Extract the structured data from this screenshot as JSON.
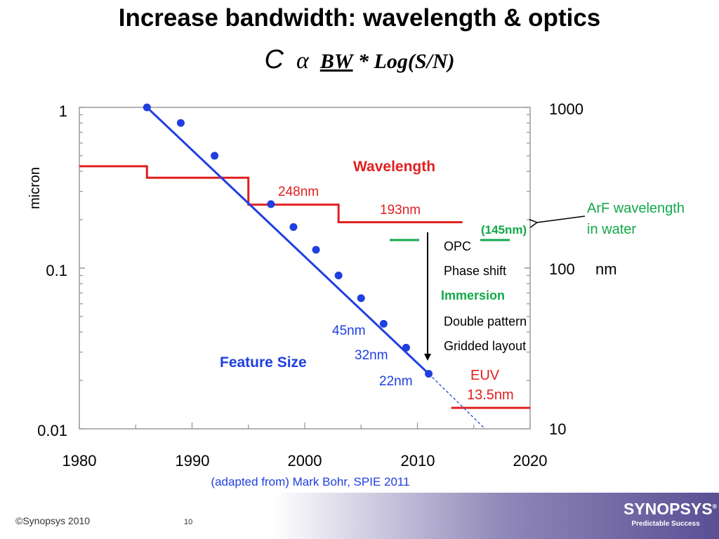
{
  "slide": {
    "title": "Increase bandwidth: wavelength & optics",
    "formula": {
      "c": "C",
      "alpha": "α",
      "bw": "BW",
      "rest": "* Log(S/N)"
    },
    "source_note": "(adapted from) Mark Bohr, SPIE 2011",
    "copyright": "©Synopsys 2010",
    "page_number": "10",
    "logo": {
      "brand": "SYNOPSYS",
      "reg": "®",
      "tagline": "Predictable Success"
    }
  },
  "chart_data": {
    "type": "line",
    "x_range": [
      1980,
      2020
    ],
    "x_ticks": [
      1980,
      1990,
      2000,
      2010,
      2020
    ],
    "x_tick_labels": [
      "1980",
      "1990",
      "2000",
      "2010",
      "2020"
    ],
    "y_left": {
      "label": "micron",
      "scale": "log",
      "range": [
        0.01,
        1
      ],
      "ticks": [
        1,
        0.1,
        0.01
      ],
      "tick_labels": [
        "1",
        "0.1",
        "0.01"
      ]
    },
    "y_right": {
      "scale": "log",
      "range": [
        10,
        1000
      ],
      "ticks": [
        1000,
        100,
        10
      ],
      "tick_labels": [
        "1000",
        "100",
        "10"
      ],
      "unit": "nm"
    },
    "colors": {
      "feature": "#1f3fe0",
      "wavelength": "#e02020",
      "annotation_green": "#12a84a",
      "axis": "#9a9a9a"
    },
    "series": [
      {
        "name": "Feature Size",
        "marker": "dot",
        "x": [
          1986,
          1989,
          1992,
          1997,
          1999,
          2001,
          2003,
          2005,
          2007,
          2009,
          2011
        ],
        "y": [
          1.0,
          0.8,
          0.5,
          0.25,
          0.18,
          0.13,
          0.09,
          0.065,
          0.045,
          0.032,
          0.022
        ],
        "fit_line": {
          "x": [
            1986,
            2011
          ],
          "y": [
            1.0,
            0.022
          ]
        },
        "extrapolation": {
          "x": [
            2011,
            2016
          ],
          "y": [
            0.022,
            0.01
          ]
        },
        "labels": [
          {
            "text": "45nm",
            "x": 2007,
            "y": 0.045
          },
          {
            "text": "32nm",
            "x": 2009,
            "y": 0.032
          },
          {
            "text": "22nm",
            "x": 2011,
            "y": 0.022
          }
        ]
      },
      {
        "name": "Wavelength",
        "step": true,
        "x": [
          1980,
          1986,
          1986,
          1995,
          1995,
          2003,
          2003,
          2014
        ],
        "y": [
          0.43,
          0.43,
          0.365,
          0.365,
          0.248,
          0.248,
          0.193,
          0.193
        ],
        "labels": [
          {
            "text": "248nm"
          },
          {
            "text": "193nm"
          }
        ]
      },
      {
        "name": "EUV",
        "x": [
          2013,
          2020
        ],
        "y": [
          0.0135,
          0.0135
        ],
        "labels": [
          {
            "text": "EUV"
          },
          {
            "text": "13.5nm"
          }
        ]
      }
    ],
    "annotations": {
      "arf": {
        "marker_label": "(145nm)",
        "callout_line1": "ArF wavelength",
        "callout_line2": "in water"
      },
      "techniques": [
        "OPC",
        "Phase shift",
        "Immersion",
        "Double pattern",
        "Gridded layout"
      ],
      "feature_label": "Feature Size",
      "wavelength_label": "Wavelength"
    }
  }
}
